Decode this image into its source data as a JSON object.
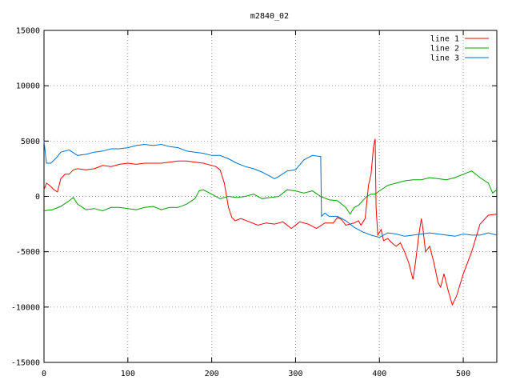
{
  "chart_data": {
    "type": "line",
    "title": "m2840_02",
    "xlabel": "",
    "ylabel": "",
    "xlim": [
      0,
      540
    ],
    "ylim": [
      -15000,
      15000
    ],
    "xticks": [
      "0",
      "100",
      "200",
      "300",
      "400",
      "500"
    ],
    "yticks": [
      "15000",
      "10000",
      "5000",
      "0",
      "-5000",
      "-10000",
      "-15000"
    ],
    "grid": true,
    "legend_position": "top-right",
    "series": [
      {
        "name": "line 1",
        "color": "#ff0000",
        "points": [
          [
            0,
            600
          ],
          [
            3,
            1200
          ],
          [
            8,
            900
          ],
          [
            12,
            600
          ],
          [
            16,
            400
          ],
          [
            20,
            1600
          ],
          [
            25,
            2000
          ],
          [
            30,
            2000
          ],
          [
            35,
            2400
          ],
          [
            40,
            2500
          ],
          [
            50,
            2400
          ],
          [
            60,
            2500
          ],
          [
            70,
            2800
          ],
          [
            80,
            2700
          ],
          [
            90,
            2900
          ],
          [
            100,
            3000
          ],
          [
            110,
            2900
          ],
          [
            120,
            3000
          ],
          [
            130,
            3000
          ],
          [
            140,
            3000
          ],
          [
            150,
            3100
          ],
          [
            160,
            3200
          ],
          [
            170,
            3200
          ],
          [
            180,
            3100
          ],
          [
            190,
            3000
          ],
          [
            200,
            2800
          ],
          [
            205,
            2700
          ],
          [
            210,
            2400
          ],
          [
            215,
            1200
          ],
          [
            220,
            -1000
          ],
          [
            224,
            -1900
          ],
          [
            228,
            -2200
          ],
          [
            235,
            -2000
          ],
          [
            245,
            -2300
          ],
          [
            255,
            -2600
          ],
          [
            265,
            -2400
          ],
          [
            275,
            -2500
          ],
          [
            285,
            -2300
          ],
          [
            295,
            -2900
          ],
          [
            305,
            -2300
          ],
          [
            315,
            -2500
          ],
          [
            325,
            -2900
          ],
          [
            335,
            -2400
          ],
          [
            345,
            -2400
          ],
          [
            350,
            -1900
          ],
          [
            355,
            -2100
          ],
          [
            360,
            -2600
          ],
          [
            370,
            -2400
          ],
          [
            375,
            -2200
          ],
          [
            378,
            -2600
          ],
          [
            383,
            -2000
          ],
          [
            387,
            1000
          ],
          [
            390,
            2000
          ],
          [
            393,
            4500
          ],
          [
            395,
            5200
          ],
          [
            396,
            -1000
          ],
          [
            398,
            -3500
          ],
          [
            402,
            -3000
          ],
          [
            405,
            -4000
          ],
          [
            410,
            -3800
          ],
          [
            415,
            -4200
          ],
          [
            420,
            -4500
          ],
          [
            425,
            -4200
          ],
          [
            430,
            -5000
          ],
          [
            435,
            -6000
          ],
          [
            440,
            -7500
          ],
          [
            443,
            -6000
          ],
          [
            447,
            -3500
          ],
          [
            450,
            -2000
          ],
          [
            452,
            -3000
          ],
          [
            455,
            -5000
          ],
          [
            460,
            -4500
          ],
          [
            465,
            -6000
          ],
          [
            470,
            -7800
          ],
          [
            473,
            -8200
          ],
          [
            477,
            -7000
          ],
          [
            482,
            -8500
          ],
          [
            487,
            -9800
          ],
          [
            492,
            -9000
          ],
          [
            500,
            -7000
          ],
          [
            510,
            -5000
          ],
          [
            520,
            -2500
          ],
          [
            530,
            -1700
          ],
          [
            540,
            -1600
          ]
        ]
      },
      {
        "name": "line 2",
        "color": "#00a000",
        "points": [
          [
            0,
            -1300
          ],
          [
            10,
            -1200
          ],
          [
            20,
            -900
          ],
          [
            30,
            -400
          ],
          [
            35,
            -100
          ],
          [
            40,
            -700
          ],
          [
            50,
            -1200
          ],
          [
            60,
            -1100
          ],
          [
            70,
            -1300
          ],
          [
            80,
            -1000
          ],
          [
            90,
            -1000
          ],
          [
            100,
            -1100
          ],
          [
            110,
            -1200
          ],
          [
            120,
            -1000
          ],
          [
            130,
            -900
          ],
          [
            140,
            -1200
          ],
          [
            150,
            -1000
          ],
          [
            160,
            -1000
          ],
          [
            170,
            -700
          ],
          [
            180,
            -200
          ],
          [
            185,
            500
          ],
          [
            190,
            600
          ],
          [
            200,
            200
          ],
          [
            210,
            -200
          ],
          [
            220,
            0
          ],
          [
            230,
            -100
          ],
          [
            240,
            0
          ],
          [
            250,
            200
          ],
          [
            260,
            -200
          ],
          [
            270,
            -100
          ],
          [
            280,
            0
          ],
          [
            290,
            600
          ],
          [
            300,
            500
          ],
          [
            310,
            300
          ],
          [
            320,
            500
          ],
          [
            330,
            0
          ],
          [
            340,
            -300
          ],
          [
            350,
            -400
          ],
          [
            360,
            -1000
          ],
          [
            365,
            -1600
          ],
          [
            370,
            -1000
          ],
          [
            375,
            -800
          ],
          [
            385,
            0
          ],
          [
            390,
            200
          ],
          [
            395,
            200
          ],
          [
            400,
            500
          ],
          [
            410,
            1000
          ],
          [
            420,
            1200
          ],
          [
            430,
            1400
          ],
          [
            440,
            1500
          ],
          [
            450,
            1500
          ],
          [
            460,
            1700
          ],
          [
            470,
            1600
          ],
          [
            480,
            1500
          ],
          [
            490,
            1700
          ],
          [
            500,
            2000
          ],
          [
            510,
            2300
          ],
          [
            520,
            1700
          ],
          [
            530,
            1200
          ],
          [
            535,
            300
          ],
          [
            540,
            600
          ]
        ]
      },
      {
        "name": "line 3",
        "color": "#0070d0",
        "points": [
          [
            0,
            5000
          ],
          [
            3,
            3000
          ],
          [
            8,
            3000
          ],
          [
            15,
            3500
          ],
          [
            20,
            4000
          ],
          [
            30,
            4200
          ],
          [
            40,
            3700
          ],
          [
            50,
            3800
          ],
          [
            60,
            4000
          ],
          [
            70,
            4100
          ],
          [
            80,
            4300
          ],
          [
            90,
            4300
          ],
          [
            100,
            4400
          ],
          [
            110,
            4600
          ],
          [
            120,
            4700
          ],
          [
            130,
            4600
          ],
          [
            140,
            4700
          ],
          [
            150,
            4500
          ],
          [
            160,
            4400
          ],
          [
            170,
            4100
          ],
          [
            180,
            4000
          ],
          [
            190,
            3900
          ],
          [
            200,
            3700
          ],
          [
            210,
            3700
          ],
          [
            220,
            3400
          ],
          [
            230,
            3000
          ],
          [
            240,
            2700
          ],
          [
            250,
            2500
          ],
          [
            260,
            2200
          ],
          [
            270,
            1800
          ],
          [
            275,
            1600
          ],
          [
            280,
            1800
          ],
          [
            290,
            2300
          ],
          [
            300,
            2400
          ],
          [
            310,
            3300
          ],
          [
            320,
            3700
          ],
          [
            330,
            3600
          ],
          [
            331,
            -1800
          ],
          [
            335,
            -1500
          ],
          [
            340,
            -1800
          ],
          [
            350,
            -1800
          ],
          [
            360,
            -2200
          ],
          [
            370,
            -2800
          ],
          [
            380,
            -3200
          ],
          [
            390,
            -3500
          ],
          [
            400,
            -3700
          ],
          [
            410,
            -3300
          ],
          [
            420,
            -3400
          ],
          [
            430,
            -3600
          ],
          [
            440,
            -3500
          ],
          [
            450,
            -3400
          ],
          [
            460,
            -3300
          ],
          [
            470,
            -3400
          ],
          [
            480,
            -3500
          ],
          [
            490,
            -3600
          ],
          [
            500,
            -3400
          ],
          [
            510,
            -3500
          ],
          [
            520,
            -3500
          ],
          [
            530,
            -3300
          ],
          [
            540,
            -3500
          ]
        ]
      }
    ]
  }
}
